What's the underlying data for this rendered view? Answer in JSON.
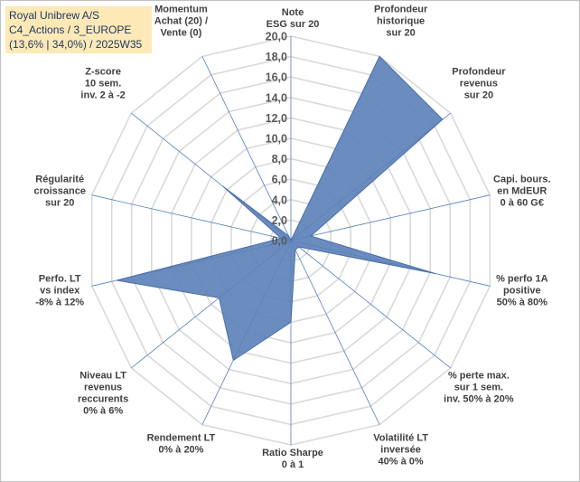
{
  "chart_data": {
    "type": "radar",
    "title_lines": [
      "Royal Unibrew A/S",
      "C4_Actions / 3_EUROPE",
      "(13,6% | 34,0%) / 2025W35"
    ],
    "axes": [
      [
        "Note",
        "ESG sur 20"
      ],
      [
        "Profondeur",
        "historique",
        "sur 20"
      ],
      [
        "Profondeur",
        "revenus",
        "sur 20"
      ],
      [
        "Capi. bours.",
        "en MdEUR",
        "0 à 60 G€"
      ],
      [
        "% perfo 1A",
        "positive",
        "50% à 80%"
      ],
      [
        "% perte max.",
        "sur 1 sem.",
        "inv. 50% à 20%"
      ],
      [
        "Volatilité LT",
        "inversée",
        "40% à 0%"
      ],
      [
        "Ratio Sharpe",
        "0 à 1"
      ],
      [
        "Rendement LT",
        "0% à 20%"
      ],
      [
        "Niveau LT",
        "revenus",
        "reccurents",
        "0% à 6%"
      ],
      [
        "Perfo. LT",
        "vs index",
        "-8% à 12%"
      ],
      [
        "Régularité",
        "croissance",
        "sur 20"
      ],
      [
        "Z-score",
        "10 sem.",
        "inv. 2 à -2"
      ],
      [
        "Momentum",
        "Achat (20) /",
        "Vente (0)"
      ]
    ],
    "values": [
      0,
      20.0,
      19.0,
      2.0,
      14.5,
      1.0,
      1.0,
      8.0,
      13.0,
      9.0,
      17.5,
      1.0,
      8.5,
      0.5
    ],
    "rmax": 20,
    "ticks": [
      "0,0",
      "2,0",
      "4,0",
      "6,0",
      "8,0",
      "10,0",
      "12,0",
      "14,0",
      "16,0",
      "18,0",
      "20,0"
    ],
    "colors": {
      "fill": "#5b7fb8",
      "stroke": "#4a6fa8",
      "grid": "#d9d9d9",
      "spoke": "#4f81bd",
      "title_bg": "#fde9b6",
      "title_text": "#1f3864"
    }
  }
}
